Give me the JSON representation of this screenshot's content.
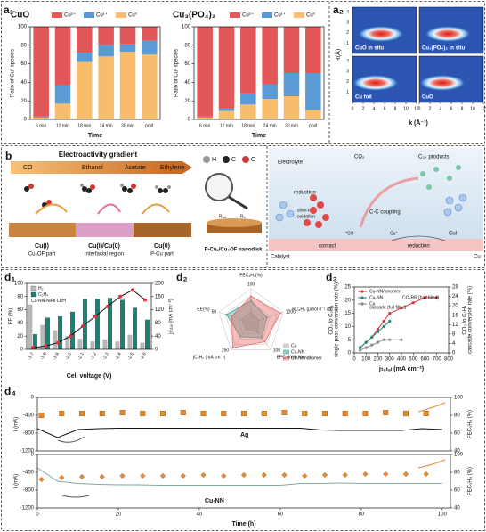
{
  "labels": {
    "a1": "a₁",
    "a2": "a₂",
    "b": "b",
    "c": "c",
    "d1": "d₁",
    "d2": "d₂",
    "d3": "d₃",
    "d4": "d₄"
  },
  "chart_data": [
    {
      "type": "stacked_bar",
      "title": "CuO",
      "categories": [
        "6 min",
        "12 min",
        "18 min",
        "24 min",
        "30 min",
        "post"
      ],
      "series": [
        {
          "name": "Cu²⁺",
          "color": "#e2575a",
          "values": [
            97,
            63,
            28,
            20,
            19,
            15
          ]
        },
        {
          "name": "Cu¹⁺",
          "color": "#5b9bd5",
          "values": [
            1,
            20,
            10,
            12,
            8,
            15
          ]
        },
        {
          "name": "Cu⁰",
          "color": "#f8bd6c",
          "values": [
            2,
            17,
            62,
            68,
            73,
            70
          ]
        }
      ],
      "x_label": "Time",
      "y_label": "Ratio of Cuˣ species",
      "ylim": [
        0,
        100
      ],
      "yticks": [
        0,
        20,
        40,
        60,
        80,
        100
      ]
    },
    {
      "type": "stacked_bar",
      "title": "Cu₃(PO₄)₂",
      "categories": [
        "6 min",
        "12 min",
        "18 min",
        "24 min",
        "30 min",
        "post"
      ],
      "series": [
        {
          "name": "Cu²⁺",
          "color": "#e2575a",
          "values": [
            97,
            88,
            72,
            62,
            50,
            50
          ]
        },
        {
          "name": "Cu¹⁺",
          "color": "#5b9bd5",
          "values": [
            1,
            3,
            12,
            16,
            25,
            40
          ]
        },
        {
          "name": "Cu⁰",
          "color": "#f8bd6c",
          "values": [
            2,
            9,
            16,
            22,
            25,
            10
          ]
        }
      ],
      "x_label": "Time",
      "y_label": "Ratio of Cuˣ species",
      "ylim": [
        0,
        100
      ],
      "yticks": [
        0,
        20,
        40,
        60,
        80,
        100
      ]
    },
    {
      "type": "bar",
      "categories": [
        "-1.7",
        "-1.8",
        "-1.9",
        "-2.0",
        "-2.1",
        "-2.2",
        "-2.3",
        "-2.4",
        "-2.5",
        "-2.6"
      ],
      "series": [
        {
          "name": "H₂",
          "color": "#b8b8b8",
          "values": [
            68,
            37,
            29,
            20,
            16,
            12,
            15,
            12,
            22,
            10
          ]
        },
        {
          "name": "C₂H₄",
          "color": "#1f7f74",
          "values": [
            23,
            48,
            50,
            57,
            76,
            77,
            78,
            75,
            63,
            45
          ]
        },
        {
          "color": "#111111",
          "marker_color": "#e0303a",
          "axis": "y2",
          "values": [
            5,
            10,
            20,
            40,
            70,
            100,
            130,
            160,
            180,
            150
          ]
        }
      ],
      "legend_title": "Cu-NN-NiFe LDH",
      "x_label": "Cell voltage (V)",
      "y_label": "FE (%)",
      "y2_label": "jₜₒₜₐₗ (mA cm⁻²)",
      "ylim": [
        0,
        100
      ],
      "yticks": [
        0,
        20,
        40,
        60,
        80,
        100
      ],
      "y2lim": [
        0,
        200
      ],
      "y2ticks": [
        0,
        40,
        80,
        120,
        160,
        200
      ]
    },
    {
      "type": "radar",
      "axes": [
        {
          "name": "FEC₂H₄(%)",
          "max": 100
        },
        {
          "name": "RC₂H₄ (μmol h⁻¹ cm⁻²)",
          "max": 1200
        },
        {
          "name": "EPC (kWh Nm⁻³)",
          "max": 100
        },
        {
          "name": "jC₂H₄ (mA cm⁻²)",
          "max": 250
        },
        {
          "name": "EE(%)",
          "max": 50
        }
      ],
      "series": [
        {
          "name": "Cu",
          "color": "#b0b0b0",
          "values": [
            30,
            300,
            35,
            60,
            15
          ]
        },
        {
          "name": "Cu-NN",
          "color": "#3aa39a",
          "values": [
            65,
            600,
            55,
            130,
            38
          ]
        },
        {
          "name": "Cu-NN/ionomer",
          "color": "#e8706f",
          "values": [
            78,
            1100,
            70,
            230,
            30
          ]
        }
      ]
    },
    {
      "type": "line",
      "series": [
        {
          "name": "Cu-NN/ionomer",
          "color": "#e0303a",
          "marker": "circle",
          "x": [
            50,
            100,
            150,
            200,
            250,
            300,
            400,
            500,
            600,
            700
          ],
          "values": [
            2,
            4,
            6,
            9,
            12,
            15,
            17,
            19,
            21,
            21
          ]
        },
        {
          "name": "Cu-NN",
          "color": "#1f8a7f",
          "marker": "circle",
          "x": [
            50,
            100,
            150,
            200,
            250,
            300
          ],
          "values": [
            2,
            4,
            6,
            8,
            10,
            12
          ]
        },
        {
          "name": "Cu",
          "color": "#888888",
          "marker": "circle",
          "x": [
            50,
            100,
            150,
            200,
            250,
            300,
            400
          ],
          "values": [
            1,
            2,
            3,
            4,
            5,
            5,
            5
          ]
        }
      ],
      "annotations": [
        "CO₂RR (half filled)",
        "cascade (full filled)"
      ],
      "x_label": "jₜₒₜₐₗ (mA cm⁻²)",
      "y_label": [
        "CO₂ to C₂H₄",
        "single-pass conversion rate (%)"
      ],
      "y2_label": [
        "CO₂ to C₂H₄",
        "cascade conversion rate (%)"
      ],
      "xlim": [
        0,
        800
      ],
      "xticks": [
        0,
        100,
        200,
        300,
        400,
        500,
        600,
        700,
        800
      ],
      "ylim": [
        0,
        25
      ],
      "yticks": [
        0,
        5,
        10,
        15,
        20,
        25
      ],
      "y2lim": [
        0,
        28
      ],
      "y2ticks": [
        0,
        4,
        8,
        12,
        16,
        20,
        24,
        28
      ]
    },
    {
      "type": "line",
      "label": "Ag",
      "series": [
        {
          "color": "#111111",
          "x": [
            0,
            5,
            10,
            15,
            20,
            25,
            30,
            35,
            40,
            45,
            50,
            55,
            60,
            65,
            70,
            75,
            80,
            85,
            90,
            95,
            100
          ],
          "values": [
            -700,
            -900,
            -720,
            -700,
            -690,
            -690,
            -690,
            -690,
            -690,
            -690,
            -690,
            -690,
            -690,
            -690,
            -730,
            -740,
            -740,
            -740,
            -740,
            -700,
            -720
          ]
        },
        {
          "color": "#e8892f",
          "style": "markers",
          "marker": "square",
          "axis": "y2",
          "x": [
            1,
            6,
            11,
            16,
            21,
            26,
            31,
            36,
            41,
            46,
            51,
            56,
            61,
            66,
            71,
            76,
            81,
            86,
            91,
            96
          ],
          "values": [
            80,
            82,
            82,
            82,
            83,
            82,
            82,
            83,
            82,
            82,
            82,
            82,
            83,
            82,
            82,
            82,
            82,
            83,
            82,
            82
          ]
        }
      ],
      "y_label": "I (mA)",
      "y2_label": "FEC₂H₄ (%)",
      "xlim": [
        0,
        102
      ],
      "ylim": [
        -1200,
        0
      ],
      "yticks": [
        0,
        -400,
        -800,
        -1200
      ],
      "y2lim": [
        40,
        100
      ],
      "y2ticks": [
        40,
        60,
        80,
        100
      ]
    },
    {
      "type": "line",
      "label": "Cu-NN",
      "series": [
        {
          "color": "#7fa9a4",
          "x": [
            0,
            5,
            10,
            15,
            20,
            25,
            30,
            35,
            40,
            45,
            50,
            55,
            60,
            65,
            70,
            75,
            80,
            85,
            90,
            95,
            100
          ],
          "values": [
            -300,
            -600,
            -650,
            -670,
            -680,
            -680,
            -690,
            -690,
            -690,
            -690,
            -690,
            -690,
            -690,
            -650,
            -650,
            -640,
            -650,
            -650,
            -650,
            -650,
            -650
          ]
        },
        {
          "color": "#e8892f",
          "style": "markers",
          "marker": "diamond",
          "axis": "y2",
          "x": [
            1,
            6,
            11,
            16,
            21,
            26,
            31,
            36,
            41,
            46,
            51,
            56,
            61,
            66,
            71,
            76,
            81,
            86,
            91,
            96
          ],
          "values": [
            72,
            74,
            75,
            75,
            76,
            76,
            76,
            76,
            77,
            76,
            77,
            77,
            77,
            76,
            77,
            77,
            78,
            78,
            78,
            78
          ]
        }
      ],
      "x_label": "Time (h)",
      "y_label": "I (mA)",
      "y2_label": "FEC₂H₄ (%)",
      "xlim": [
        0,
        102
      ],
      "xticks": [
        0,
        20,
        40,
        60,
        80,
        100
      ],
      "ylim": [
        -1200,
        0
      ],
      "yticks": [
        0,
        -400,
        -800,
        -1200
      ],
      "y2lim": [
        40,
        100
      ],
      "y2ticks": [
        40,
        60,
        80,
        100
      ]
    }
  ],
  "a2": {
    "panels": [
      "CuO in situ",
      "Cu₃(PO₄)₂ in situ",
      "Cu foil",
      "CuO"
    ],
    "x_label": "k (Å⁻¹)",
    "y_label": "R(Å)",
    "x_ticks": [
      0,
      2,
      4,
      6,
      8,
      10,
      12
    ],
    "y_ticks": [
      1,
      2,
      3,
      4
    ]
  },
  "b": {
    "gradient": "Electroactivity gradient",
    "products": [
      "CO",
      "Ethanol",
      "Acetate",
      "Ethylene"
    ],
    "atoms": [
      "H",
      "C",
      "O"
    ],
    "regions": [
      [
        "Cu(I)",
        "Cu₂OF part"
      ],
      [
        "Cu(I)/Cu(0)",
        "Interfacial region"
      ],
      [
        "Cu(0)",
        "P-Cu part"
      ]
    ],
    "nanodisk": "P-Cuₓ/Cu₂OF nanodisk",
    "r_out": "Rₒᵤₜ",
    "r_in": "Rᵢₙ"
  },
  "c": {
    "electrolyte": "Electrolyte",
    "co2": "CO₂",
    "products": "C₂₊ products",
    "reduction": "reduction",
    "oxidation": [
      "slow-rate",
      "oxidation"
    ],
    "coupling": "C-C coupling",
    "contact": "contact",
    "reduction2": "reduction",
    "co": "*CO",
    "cu_plus": "Cu⁺",
    "cui": "CuI",
    "catalyst": "Catalyst",
    "cu": "Cu"
  }
}
